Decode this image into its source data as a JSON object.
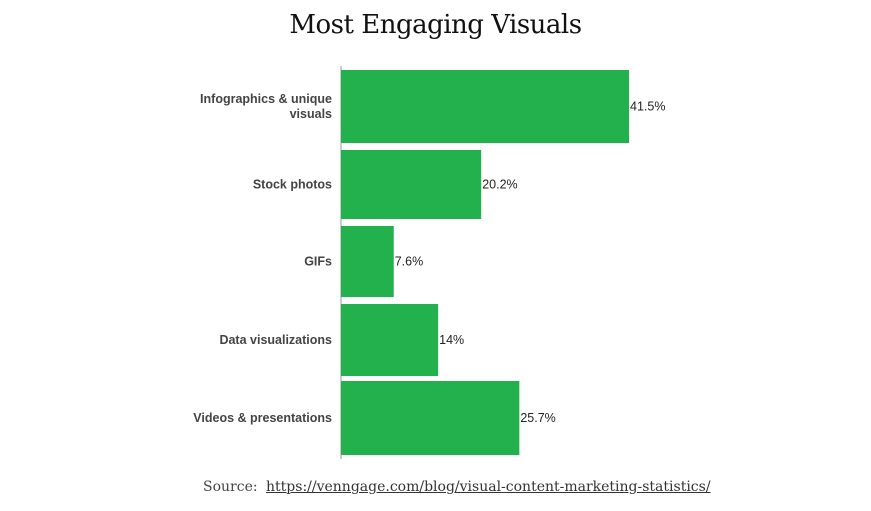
{
  "chart_data": {
    "type": "bar",
    "orientation": "horizontal",
    "title": "Most Engaging Visuals",
    "categories": [
      [
        "Infographics & unique",
        "visuals"
      ],
      [
        "Stock photos"
      ],
      [
        "GIFs"
      ],
      [
        "Data visualizations"
      ],
      [
        "Videos & presentations"
      ]
    ],
    "values": [
      41.5,
      20.2,
      7.6,
      14,
      25.7
    ],
    "value_labels": [
      "41.5%",
      "20.2%",
      "7.6%",
      "14%",
      "25.7%"
    ],
    "xlim": [
      0,
      43
    ],
    "xlabel": "",
    "ylabel": "",
    "grid": false,
    "bar_color": "#22b14c"
  },
  "source": {
    "label": "Source:",
    "url_text": "https://venngage.com/blog/visual-content-marketing-statistics/"
  }
}
